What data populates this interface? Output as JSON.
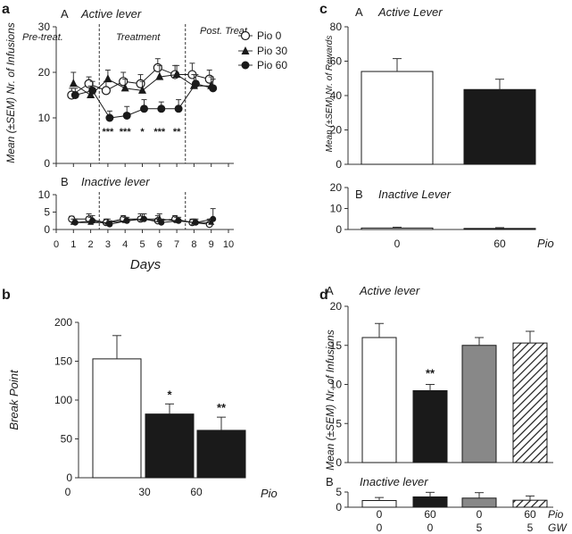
{
  "chart_data": [
    {
      "id": "a",
      "type": "line",
      "panel_letter": "a",
      "ylabel": "Mean (±SEM) Nr. of Infusions",
      "xlabel": "Days",
      "x_ticks": [
        "0",
        "1",
        "2",
        "3",
        "4",
        "5",
        "6",
        "7",
        "8",
        "9",
        "10"
      ],
      "phases": [
        "Pre-treat.",
        "Treatment",
        "Post. Treat."
      ],
      "legend": [
        "Pio 0",
        "Pio 30",
        "Pio 60"
      ],
      "subpanels": [
        {
          "letter": "A",
          "title": "Active lever",
          "ylim": [
            0,
            30
          ],
          "y_ticks": [
            "0",
            "10",
            "20",
            "30"
          ],
          "x": [
            1,
            2,
            3,
            4,
            5,
            6,
            7,
            8,
            9
          ],
          "series": [
            {
              "name": "Pio 0",
              "values": [
                15,
                17.5,
                16,
                18,
                17.5,
                21,
                19.5,
                19.5,
                18.5
              ],
              "err": [
                1.5,
                1.5,
                2,
                2,
                2,
                2,
                2,
                2.5,
                2
              ]
            },
            {
              "name": "Pio 30",
              "values": [
                17.5,
                15,
                18.5,
                16.5,
                16,
                19,
                19.5,
                17,
                17
              ],
              "err": [
                2.5,
                2,
                2,
                2,
                2,
                2.5,
                2,
                2.5,
                2
              ]
            },
            {
              "name": "Pio 60",
              "values": [
                15,
                16,
                10,
                10.5,
                12,
                12,
                12,
                17.5,
                16.5
              ],
              "err": [
                1.5,
                2,
                1.5,
                2,
                2,
                1.5,
                2,
                2,
                2
              ]
            }
          ],
          "annotations": [
            {
              "x": 3,
              "text": "***"
            },
            {
              "x": 4,
              "text": "***"
            },
            {
              "x": 5,
              "text": "*"
            },
            {
              "x": 6,
              "text": "***"
            },
            {
              "x": 7,
              "text": "**"
            }
          ]
        },
        {
          "letter": "B",
          "title": "Inactive lever",
          "ylim": [
            0,
            10
          ],
          "y_ticks": [
            "0",
            "5",
            "10"
          ],
          "x": [
            1,
            2,
            3,
            4,
            5,
            6,
            7,
            8,
            9
          ],
          "series": [
            {
              "name": "Pio 0",
              "values": [
                3,
                3,
                2,
                3,
                3,
                2.5,
                3,
                2,
                1.5
              ],
              "err": [
                0.8,
                1.5,
                1,
                1,
                1.5,
                1.5,
                1,
                1,
                1.5
              ]
            },
            {
              "name": "Pio 30",
              "values": [
                2,
                2,
                2,
                2.5,
                3,
                3,
                2.5,
                2,
                2
              ],
              "err": [
                1,
                1.5,
                1,
                1,
                1.5,
                1.5,
                1,
                1,
                1
              ]
            },
            {
              "name": "Pio 60",
              "values": [
                2,
                2.5,
                1.5,
                2.5,
                3,
                2,
                2.5,
                2,
                3
              ],
              "err": [
                1,
                1.5,
                1,
                1,
                1.5,
                1,
                1,
                1,
                3
              ]
            }
          ]
        }
      ]
    },
    {
      "id": "b",
      "type": "bar",
      "panel_letter": "b",
      "ylabel": "Break Point",
      "xlabel": "Pio",
      "categories": [
        "0",
        "30",
        "60"
      ],
      "values": [
        153,
        82,
        61
      ],
      "err": [
        30,
        13,
        17
      ],
      "fills": [
        "#ffffff",
        "#1a1a1a",
        "#1a1a1a"
      ],
      "ylim": [
        0,
        200
      ],
      "y_ticks": [
        "0",
        "50",
        "100",
        "150",
        "200"
      ],
      "annotations": [
        "",
        "*",
        "**"
      ]
    },
    {
      "id": "c",
      "type": "bar",
      "panel_letter": "c",
      "ylabel": "Mean (±SEM) Nr. of Rewards",
      "xlabel": "Pio",
      "categories": [
        "0",
        "60"
      ],
      "fills": [
        "#ffffff",
        "#1a1a1a"
      ],
      "subpanels": [
        {
          "letter": "A",
          "title": "Active Lever",
          "ylim": [
            0,
            80
          ],
          "y_ticks": [
            "0",
            "20",
            "40",
            "60",
            "80"
          ],
          "values": [
            54,
            43.5
          ],
          "err": [
            7.5,
            6
          ]
        },
        {
          "letter": "B",
          "title": "Inactive Lever",
          "ylim": [
            0,
            20
          ],
          "y_ticks": [
            "0",
            "10",
            "20"
          ],
          "values": [
            0.7,
            0.5
          ],
          "err": [
            0.4,
            0.4
          ]
        }
      ]
    },
    {
      "id": "d",
      "type": "bar",
      "panel_letter": "d",
      "ylabel": "Mean (±SEM) Nr. of Infusions",
      "row_labels": [
        "Pio",
        "GW"
      ],
      "cat_pio": [
        "0",
        "60",
        "0",
        "60"
      ],
      "cat_gw": [
        "0",
        "0",
        "5",
        "5"
      ],
      "fills": [
        "#ffffff",
        "#1a1a1a",
        "#888888",
        "hatch"
      ],
      "subpanels": [
        {
          "letter": "A",
          "title": "Active lever",
          "ylim": [
            0,
            20
          ],
          "y_ticks": [
            "0",
            "5",
            "10",
            "15",
            "20"
          ],
          "values": [
            16,
            9.2,
            15,
            15.3
          ],
          "err": [
            1.8,
            0.8,
            1,
            1.5
          ],
          "annotations": [
            "",
            "**",
            "",
            ""
          ]
        },
        {
          "letter": "B",
          "title": "Inactive lever",
          "ylim": [
            0,
            5
          ],
          "y_ticks": [
            "0",
            "5"
          ],
          "values": [
            2.2,
            3.4,
            3,
            2.3
          ],
          "err": [
            1,
            1.5,
            1.8,
            1.4
          ]
        }
      ]
    }
  ]
}
